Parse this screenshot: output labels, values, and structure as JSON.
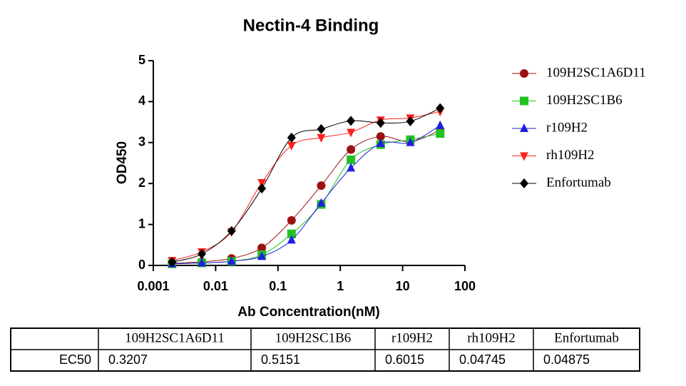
{
  "chart_data": {
    "type": "scatter",
    "title": "Nectin-4  Binding",
    "x_label": "Ab Concentration(nM)",
    "y_label": "OD450",
    "x": [
      0.002,
      0.006,
      0.018,
      0.055,
      0.165,
      0.494,
      1.48,
      4.44,
      13.3,
      40
    ],
    "xlim": [
      0.001,
      100
    ],
    "xticks": [
      0.001,
      0.01,
      0.1,
      1,
      10,
      100
    ],
    "xscale": "log",
    "ylim": [
      0,
      5
    ],
    "yticks": [
      0,
      1,
      2,
      3,
      4,
      5
    ],
    "series": [
      {
        "name": "109H2SC1A6D11",
        "color": "#9b1111",
        "marker": "circle",
        "values": [
          0.05,
          0.09,
          0.17,
          0.43,
          1.1,
          1.95,
          2.83,
          3.15,
          3.02,
          3.3
        ]
      },
      {
        "name": "109H2SC1B6",
        "color": "#22c322",
        "marker": "square",
        "values": [
          0.04,
          0.06,
          0.1,
          0.26,
          0.77,
          1.49,
          2.58,
          2.95,
          3.07,
          3.22
        ]
      },
      {
        "name": "r109H2",
        "color": "#1f1fe0",
        "marker": "triangle",
        "values": [
          0.04,
          0.06,
          0.1,
          0.22,
          0.62,
          1.52,
          2.38,
          2.98,
          3.0,
          3.42
        ]
      },
      {
        "name": "rh109H2",
        "color": "#ff2020",
        "marker": "triangle-down",
        "values": [
          0.12,
          0.33,
          0.82,
          2.02,
          2.93,
          3.12,
          3.25,
          3.55,
          3.6,
          3.76
        ]
      },
      {
        "name": "Enfortumab",
        "color": "#000000",
        "marker": "diamond",
        "values": [
          0.08,
          0.28,
          0.84,
          1.88,
          3.12,
          3.33,
          3.53,
          3.48,
          3.52,
          3.84
        ]
      }
    ]
  },
  "table": {
    "header": [
      "109H2SC1A6D11",
      "109H2SC1B6",
      "r109H2",
      "rh109H2",
      "Enfortumab"
    ],
    "rows": [
      [
        "EC50",
        "0.3207",
        "0.5151",
        "0.6015",
        "0.04745",
        "0.04875"
      ]
    ]
  }
}
